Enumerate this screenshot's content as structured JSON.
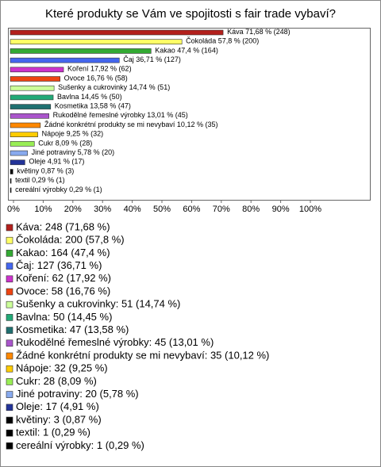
{
  "chart_data": {
    "type": "bar",
    "title": "Které produkty se Vám ve spojitosti s fair trade vybaví?",
    "categories": [
      "Káva",
      "Čokoláda",
      "Kakao",
      "Čaj",
      "Koření",
      "Ovoce",
      "Sušenky a cukrovinky",
      "Bavlna",
      "Kosmetika",
      "Rukodělné řemeslné výrobky",
      "Žádné konkrétní produkty se mi nevybaví",
      "Nápoje",
      "Cukr",
      "Jiné potraviny",
      "Oleje",
      "květiny",
      "textil",
      "cereální výrobky"
    ],
    "values": [
      71.68,
      57.8,
      47.4,
      36.71,
      17.92,
      16.76,
      14.74,
      14.45,
      13.58,
      13.01,
      10.12,
      9.25,
      8.09,
      5.78,
      4.91,
      0.87,
      0.29,
      0.29
    ],
    "value_labels": [
      "Káva 71,68 % (248)",
      "Čokoláda 57,8 % (200)",
      "Kakao 47,4 % (164)",
      "Čaj 36,71 % (127)",
      "Koření 17,92 % (62)",
      "Ovoce 16,76 % (58)",
      "Sušenky a cukrovinky 14,74 % (51)",
      "Bavlna 14,45 % (50)",
      "Kosmetika 13,58 % (47)",
      "Rukodělné řemeslné výrobky 13,01 % (45)",
      "Žádné konkrétní produkty se mi nevybaví 10,12 % (35)",
      "Nápoje 9,25 % (32)",
      "Cukr 8,09 % (28)",
      "Jiné potraviny 5,78 % (20)",
      "Oleje 4,91 % (17)",
      "květiny 0,87 % (3)",
      "textil 0,29 % (1)",
      "cereální výrobky 0,29 % (1)"
    ],
    "legend": [
      "Káva: 248 (71,68 %)",
      "Čokoláda: 200 (57,8 %)",
      "Kakao: 164 (47,4 %)",
      "Čaj: 127 (36,71 %)",
      "Koření: 62 (17,92 %)",
      "Ovoce: 58 (16,76 %)",
      "Sušenky a cukrovinky: 51 (14,74 %)",
      "Bavlna: 50 (14,45 %)",
      "Kosmetika: 47 (13,58 %)",
      "Rukodělné řemeslné výrobky: 45 (13,01 %)",
      "Žádné konkrétní produkty se mi nevybaví: 35 (10,12 %)",
      "Nápoje: 32 (9,25 %)",
      "Cukr: 28 (8,09 %)",
      "Jiné potraviny: 20 (5,78 %)",
      "Oleje: 17 (4,91 %)",
      "květiny: 3 (0,87 %)",
      "textil: 1 (0,29 %)",
      "cereální výrobky: 1 (0,29 %)"
    ],
    "colors": [
      "#b3201c",
      "#ffff66",
      "#33aa33",
      "#4466ee",
      "#cc33cc",
      "#ee4411",
      "#ccff99",
      "#22aa77",
      "#1f7070",
      "#aa55cc",
      "#ff8800",
      "#ffcc00",
      "#99ee55",
      "#88aaee",
      "#223399",
      "#000000",
      "#000000",
      "#000000"
    ],
    "xlim": [
      0,
      100
    ],
    "xticks": [
      {
        "value": 0,
        "label": "0%"
      },
      {
        "value": 10,
        "label": "10%"
      },
      {
        "value": 20,
        "label": "20%"
      },
      {
        "value": 30,
        "label": "30%"
      },
      {
        "value": 40,
        "label": "40%"
      },
      {
        "value": 50,
        "label": "50%"
      },
      {
        "value": 60,
        "label": "60%"
      },
      {
        "value": 70,
        "label": "70%"
      },
      {
        "value": 80,
        "label": "80%"
      },
      {
        "value": 90,
        "label": "90%"
      },
      {
        "value": 100,
        "label": "100%"
      }
    ]
  }
}
